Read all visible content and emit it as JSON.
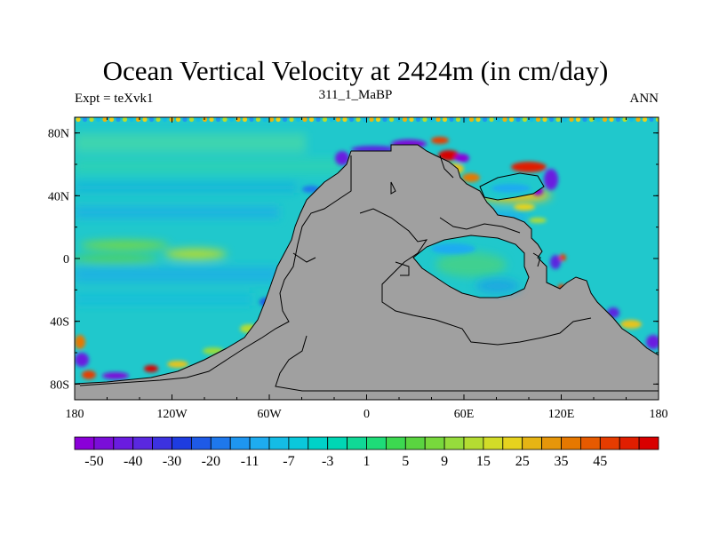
{
  "chart_data": {
    "type": "heatmap",
    "title": "Ocean Vertical Velocity at 2424m (in cm/day)",
    "left_annotation": "Expt = teXvk1",
    "center_annotation": "311_1_MaBP",
    "right_annotation": "ANN",
    "xlim": [
      -180,
      180
    ],
    "ylim": [
      -90,
      90
    ],
    "x_ticks": [
      {
        "value": -180,
        "label": "180"
      },
      {
        "value": -120,
        "label": "120W"
      },
      {
        "value": -60,
        "label": "60W"
      },
      {
        "value": 0,
        "label": "0"
      },
      {
        "value": 60,
        "label": "60E"
      },
      {
        "value": 120,
        "label": "120E"
      },
      {
        "value": 180,
        "label": "180"
      }
    ],
    "y_ticks": [
      {
        "value": 80,
        "label": "80N"
      },
      {
        "value": 40,
        "label": "40N"
      },
      {
        "value": 0,
        "label": "0"
      },
      {
        "value": -40,
        "label": "40S"
      },
      {
        "value": -80,
        "label": "80S"
      }
    ],
    "land_color": "#a0a0a0",
    "background_value_range": [
      -3,
      5
    ],
    "colorbar": {
      "colors": [
        "#8a00d8",
        "#7a0ed8",
        "#6a1ce0",
        "#5a28e0",
        "#3c32e0",
        "#1e3ce0",
        "#1e5ae6",
        "#1e78ec",
        "#1e96f0",
        "#1eacf0",
        "#14bce6",
        "#0ac8dc",
        "#00d2c8",
        "#00d6b4",
        "#10d896",
        "#1edc78",
        "#3cd850",
        "#5ad440",
        "#78d83c",
        "#96dc3c",
        "#b4dc32",
        "#d2dc28",
        "#e6d21e",
        "#e6b414",
        "#e6960a",
        "#e67800",
        "#e65a00",
        "#e63c00",
        "#e01e00",
        "#d80000"
      ],
      "labels": [
        "-50",
        "-40",
        "-30",
        "-20",
        "-11",
        "-7",
        "-3",
        "1",
        "5",
        "9",
        "15",
        "25",
        "35",
        "45"
      ]
    }
  }
}
